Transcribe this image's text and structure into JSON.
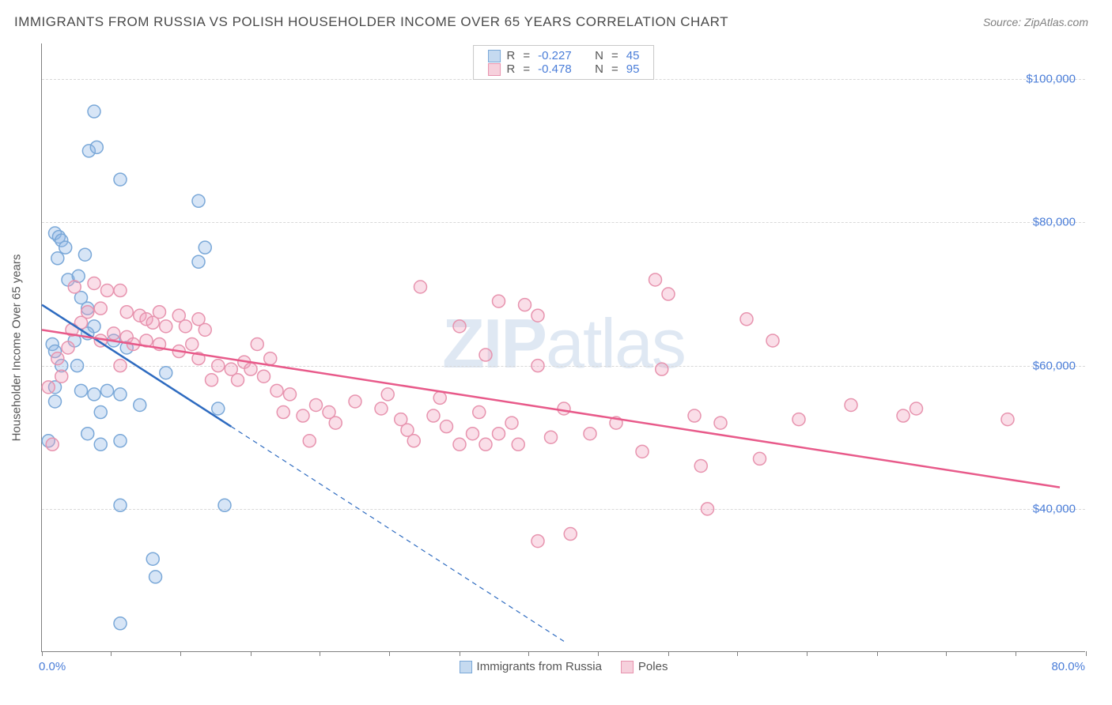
{
  "title": "IMMIGRANTS FROM RUSSIA VS POLISH HOUSEHOLDER INCOME OVER 65 YEARS CORRELATION CHART",
  "source": "Source: ZipAtlas.com",
  "watermark_a": "ZIP",
  "watermark_b": "atlas",
  "chart": {
    "type": "scatter",
    "xlim": [
      0,
      80
    ],
    "ylim": [
      20000,
      105000
    ],
    "xaxis_min_label": "0.0%",
    "xaxis_max_label": "80.0%",
    "xtick_positions": [
      0,
      5.3,
      10.6,
      16,
      21.3,
      26.6,
      32,
      37.3,
      42.6,
      48,
      53.3,
      58.6,
      64,
      69.3,
      74.6,
      80
    ],
    "yticks": [
      40000,
      60000,
      80000,
      100000
    ],
    "ytick_labels": [
      "$40,000",
      "$60,000",
      "$80,000",
      "$100,000"
    ],
    "yaxis_label": "Householder Income Over 65 years",
    "background_color": "#ffffff",
    "grid_color": "#d8d8d8",
    "marker_radius": 8,
    "marker_stroke_width": 1.5,
    "series": [
      {
        "name": "Immigrants from Russia",
        "fill": "rgba(140, 180, 230, 0.35)",
        "stroke": "#7aa8d8",
        "swatch_fill": "#c5daf0",
        "swatch_stroke": "#7aa8d8",
        "R": "-0.227",
        "N": "45",
        "regression": {
          "solid": {
            "x1": 0,
            "y1": 68500,
            "x2": 14.5,
            "y2": 51500
          },
          "dashed": {
            "x1": 14.5,
            "y1": 51500,
            "x2": 40,
            "y2": 21500
          },
          "color": "#2e6bc0",
          "width": 2.5
        },
        "points": [
          [
            1.0,
            78500
          ],
          [
            1.3,
            78000
          ],
          [
            1.5,
            77500
          ],
          [
            1.8,
            76500
          ],
          [
            1.2,
            75000
          ],
          [
            0.8,
            63000
          ],
          [
            1.0,
            62000
          ],
          [
            4.0,
            95500
          ],
          [
            2.0,
            72000
          ],
          [
            2.8,
            72500
          ],
          [
            3.6,
            90000
          ],
          [
            4.2,
            90500
          ],
          [
            3.3,
            75500
          ],
          [
            6.0,
            86000
          ],
          [
            3.0,
            69500
          ],
          [
            3.5,
            68000
          ],
          [
            4.0,
            65500
          ],
          [
            5.5,
            63500
          ],
          [
            6.5,
            62500
          ],
          [
            2.5,
            63500
          ],
          [
            2.7,
            60000
          ],
          [
            1.5,
            60000
          ],
          [
            1.0,
            57000
          ],
          [
            0.5,
            49500
          ],
          [
            3.0,
            56500
          ],
          [
            4.0,
            56000
          ],
          [
            5.0,
            56500
          ],
          [
            6.0,
            56000
          ],
          [
            4.5,
            53500
          ],
          [
            3.5,
            50500
          ],
          [
            4.5,
            49000
          ],
          [
            6.0,
            49500
          ],
          [
            7.5,
            54500
          ],
          [
            12.0,
            83000
          ],
          [
            12.5,
            76500
          ],
          [
            12.0,
            74500
          ],
          [
            9.5,
            59000
          ],
          [
            13.5,
            54000
          ],
          [
            14.0,
            40500
          ],
          [
            6.0,
            40500
          ],
          [
            8.5,
            33000
          ],
          [
            8.7,
            30500
          ],
          [
            6.0,
            24000
          ],
          [
            3.5,
            64500
          ],
          [
            1.0,
            55000
          ]
        ]
      },
      {
        "name": "Poles",
        "fill": "rgba(240, 160, 190, 0.35)",
        "stroke": "#e793ae",
        "swatch_fill": "#f6d0dc",
        "swatch_stroke": "#e793ae",
        "R": "-0.478",
        "N": "95",
        "regression": {
          "solid": {
            "x1": 0,
            "y1": 65000,
            "x2": 78,
            "y2": 43000
          },
          "dashed": null,
          "color": "#e85a8a",
          "width": 2.5
        },
        "points": [
          [
            2.5,
            71000
          ],
          [
            4.0,
            71500
          ],
          [
            5.0,
            70500
          ],
          [
            6.0,
            70500
          ],
          [
            4.5,
            68000
          ],
          [
            6.5,
            67500
          ],
          [
            7.5,
            67000
          ],
          [
            8.0,
            66500
          ],
          [
            9.0,
            67500
          ],
          [
            8.5,
            66000
          ],
          [
            5.5,
            64500
          ],
          [
            6.5,
            64000
          ],
          [
            7.0,
            63000
          ],
          [
            8.0,
            63500
          ],
          [
            9.0,
            63000
          ],
          [
            9.5,
            65500
          ],
          [
            10.5,
            67000
          ],
          [
            11.0,
            65500
          ],
          [
            12.0,
            66500
          ],
          [
            12.5,
            65000
          ],
          [
            11.5,
            63000
          ],
          [
            10.5,
            62000
          ],
          [
            12.0,
            61000
          ],
          [
            13.5,
            60000
          ],
          [
            13.0,
            58000
          ],
          [
            14.5,
            59500
          ],
          [
            15.5,
            60500
          ],
          [
            16.0,
            59500
          ],
          [
            17.0,
            58500
          ],
          [
            15.0,
            58000
          ],
          [
            17.5,
            61000
          ],
          [
            16.5,
            63000
          ],
          [
            18.0,
            56500
          ],
          [
            19.0,
            56000
          ],
          [
            18.5,
            53500
          ],
          [
            20.0,
            53000
          ],
          [
            21.0,
            54500
          ],
          [
            22.0,
            53500
          ],
          [
            22.5,
            52000
          ],
          [
            20.5,
            49500
          ],
          [
            24.0,
            55000
          ],
          [
            26.0,
            54000
          ],
          [
            26.5,
            56000
          ],
          [
            27.5,
            52500
          ],
          [
            28.0,
            51000
          ],
          [
            28.5,
            49500
          ],
          [
            30.0,
            53000
          ],
          [
            30.5,
            55500
          ],
          [
            31.0,
            51500
          ],
          [
            32.0,
            49000
          ],
          [
            33.0,
            50500
          ],
          [
            33.5,
            53500
          ],
          [
            34.0,
            49000
          ],
          [
            35.0,
            50500
          ],
          [
            36.0,
            52000
          ],
          [
            36.5,
            49000
          ],
          [
            29.0,
            71000
          ],
          [
            32.0,
            65500
          ],
          [
            35.0,
            69000
          ],
          [
            37.0,
            68500
          ],
          [
            38.0,
            67000
          ],
          [
            34.0,
            61500
          ],
          [
            38.0,
            60000
          ],
          [
            40.0,
            54000
          ],
          [
            39.0,
            50000
          ],
          [
            38.0,
            35500
          ],
          [
            40.5,
            36500
          ],
          [
            42.0,
            50500
          ],
          [
            47.0,
            72000
          ],
          [
            48.0,
            70000
          ],
          [
            47.5,
            59500
          ],
          [
            44.0,
            52000
          ],
          [
            46.0,
            48000
          ],
          [
            50.0,
            53000
          ],
          [
            54.0,
            66500
          ],
          [
            56.0,
            63500
          ],
          [
            55.0,
            47000
          ],
          [
            50.5,
            46000
          ],
          [
            52.0,
            52000
          ],
          [
            51.0,
            40000
          ],
          [
            58.0,
            52500
          ],
          [
            74.0,
            52500
          ],
          [
            62.0,
            54500
          ],
          [
            66.0,
            53000
          ],
          [
            67.0,
            54000
          ],
          [
            0.5,
            57000
          ],
          [
            1.5,
            58500
          ],
          [
            2.0,
            62500
          ],
          [
            0.8,
            49000
          ],
          [
            1.2,
            61000
          ],
          [
            2.3,
            65000
          ],
          [
            3.0,
            66000
          ],
          [
            3.5,
            67500
          ],
          [
            4.5,
            63500
          ],
          [
            6.0,
            60000
          ]
        ]
      }
    ]
  },
  "legend_bottom": {
    "a": "Immigrants from Russia",
    "b": "Poles"
  }
}
